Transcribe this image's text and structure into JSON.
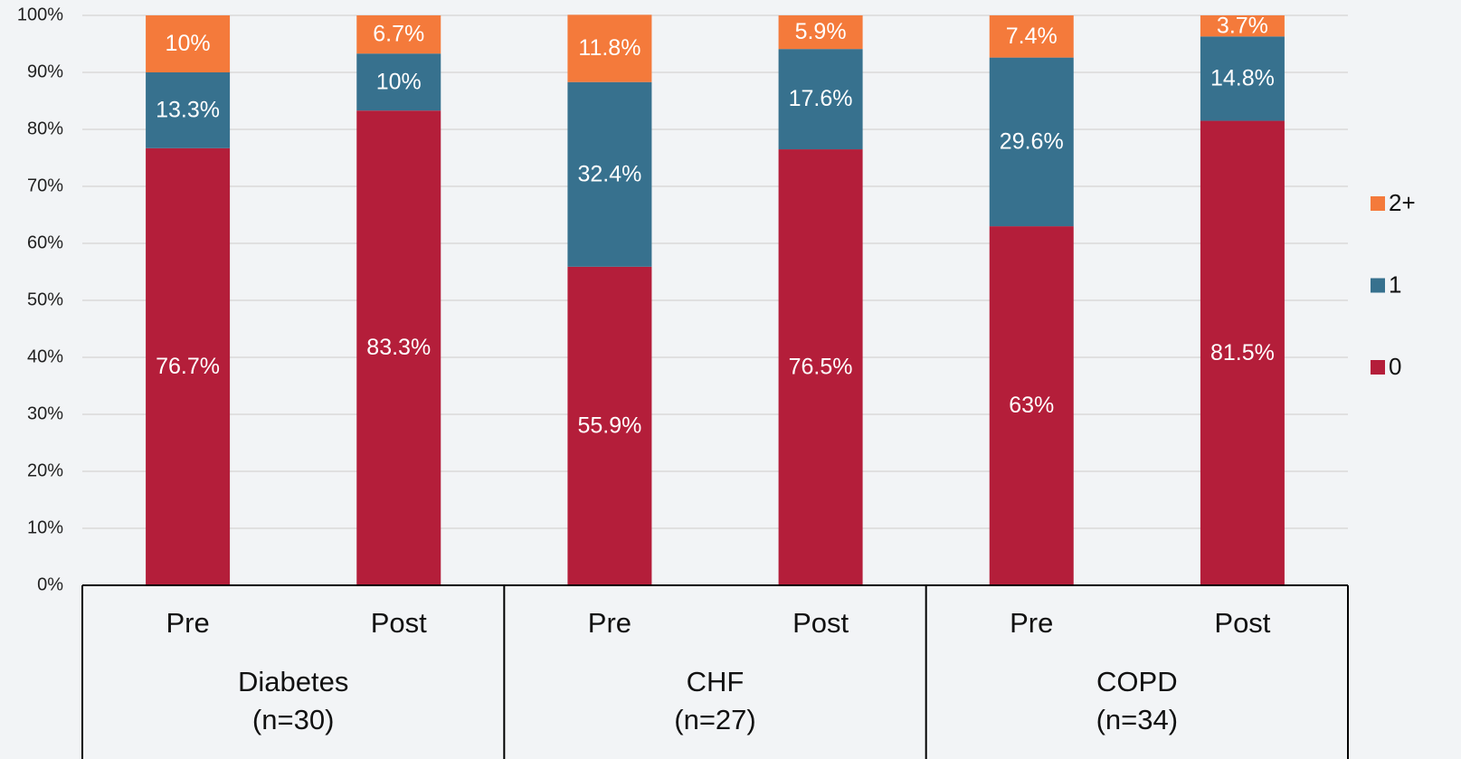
{
  "chart_data": {
    "type": "stacked_bar",
    "categories": [
      "Pre",
      "Post",
      "Pre",
      "Post",
      "Pre",
      "Post"
    ],
    "groups": [
      {
        "name": "Diabetes",
        "n": "(n=30)"
      },
      {
        "name": "CHF",
        "n": "(n=27)"
      },
      {
        "name": "COPD",
        "n": "(n=34)"
      }
    ],
    "series": [
      {
        "name": "0",
        "color": "#b41e3a",
        "values": [
          76.7,
          83.3,
          55.9,
          76.5,
          63,
          81.5
        ],
        "value_labels": [
          "76.7%",
          "83.3%",
          "55.9%",
          "76.5%",
          "63%",
          "81.5%"
        ]
      },
      {
        "name": "1",
        "color": "#37718e",
        "values": [
          13.3,
          10,
          32.4,
          17.6,
          29.6,
          14.8
        ],
        "value_labels": [
          "13.3%",
          "10%",
          "32.4%",
          "17.6%",
          "29.6%",
          "14.8%"
        ]
      },
      {
        "name": "2+",
        "color": "#f47a3b",
        "values": [
          10,
          6.7,
          11.8,
          5.9,
          7.4,
          3.7
        ],
        "value_labels": [
          "10%",
          "6.7%",
          "11.8%",
          "5.9%",
          "7.4%",
          "3.7%"
        ]
      }
    ],
    "ylim": [
      0,
      100
    ],
    "yticks": [
      {
        "value": 0,
        "label": "0%"
      },
      {
        "value": 10,
        "label": "10%"
      },
      {
        "value": 20,
        "label": "20%"
      },
      {
        "value": 30,
        "label": "30%"
      },
      {
        "value": 40,
        "label": "40%"
      },
      {
        "value": 50,
        "label": "50%"
      },
      {
        "value": 60,
        "label": "60%"
      },
      {
        "value": 70,
        "label": "70%"
      },
      {
        "value": 80,
        "label": "80%"
      },
      {
        "value": 90,
        "label": "90%"
      },
      {
        "value": 100,
        "label": "100%"
      }
    ],
    "grid": true,
    "legend": "right"
  }
}
